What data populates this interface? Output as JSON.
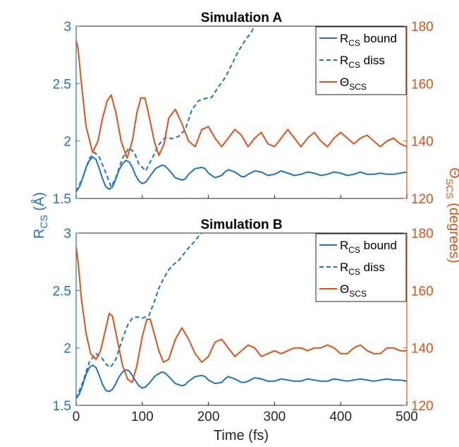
{
  "colors": {
    "blue": "#1f72bd",
    "orange": "#d95319",
    "axis": "#262626"
  },
  "figure": {
    "ylabel_left_main": "R",
    "ylabel_left_sub": "CS",
    "ylabel_left_tail": " (Å)",
    "ylabel_right_main": "Θ",
    "ylabel_right_sub": "SCS",
    "ylabel_right_tail": " (degrees)",
    "xlabel": "Time (fs)"
  },
  "chart_data": [
    {
      "type": "line",
      "title": "Simulation A",
      "xlim": [
        0,
        500
      ],
      "ylim_left": [
        1.5,
        3
      ],
      "ylim_right": [
        120,
        180
      ],
      "yticks_left": [
        "1.5",
        "2",
        "2.5",
        "3"
      ],
      "yticks_right": [
        "120",
        "140",
        "160",
        "180"
      ],
      "xticks": [
        "0",
        "100",
        "200",
        "300",
        "400",
        "500"
      ],
      "legend_position": "top-right",
      "series": [
        {
          "name": "R_CS bound",
          "legend_main": "R",
          "legend_sub": "CS",
          "legend_tail": " bound",
          "axis": "left",
          "style": "solid",
          "color": "blue",
          "x": [
            0,
            5,
            10,
            15,
            20,
            25,
            30,
            35,
            40,
            45,
            50,
            55,
            60,
            65,
            70,
            75,
            80,
            85,
            90,
            95,
            100,
            105,
            110,
            120,
            130,
            135,
            140,
            150,
            160,
            165,
            170,
            180,
            190,
            195,
            200,
            210,
            220,
            225,
            230,
            240,
            250,
            255,
            260,
            270,
            280,
            290,
            300,
            310,
            320,
            330,
            340,
            350,
            360,
            370,
            380,
            390,
            400,
            410,
            420,
            430,
            440,
            450,
            460,
            470,
            480,
            490,
            500
          ],
          "y": [
            1.56,
            1.6,
            1.68,
            1.77,
            1.83,
            1.86,
            1.84,
            1.76,
            1.67,
            1.6,
            1.58,
            1.6,
            1.67,
            1.75,
            1.8,
            1.83,
            1.82,
            1.77,
            1.7,
            1.65,
            1.63,
            1.64,
            1.68,
            1.76,
            1.79,
            1.78,
            1.75,
            1.68,
            1.66,
            1.67,
            1.71,
            1.76,
            1.77,
            1.76,
            1.72,
            1.68,
            1.7,
            1.73,
            1.75,
            1.73,
            1.69,
            1.69,
            1.71,
            1.74,
            1.73,
            1.7,
            1.71,
            1.74,
            1.72,
            1.7,
            1.71,
            1.73,
            1.72,
            1.7,
            1.71,
            1.73,
            1.72,
            1.7,
            1.71,
            1.73,
            1.71,
            1.71,
            1.72,
            1.71,
            1.71,
            1.72,
            1.73
          ]
        },
        {
          "name": "R_CS diss",
          "legend_main": "R",
          "legend_sub": "CS",
          "legend_tail": " diss",
          "axis": "left",
          "style": "dashed",
          "color": "blue",
          "x": [
            0,
            10,
            20,
            28,
            35,
            45,
            53,
            60,
            70,
            80,
            88,
            95,
            105,
            115,
            125,
            135,
            145,
            155,
            165,
            175,
            185,
            195,
            205,
            215,
            225,
            235,
            245,
            255,
            265,
            270
          ],
          "y": [
            1.56,
            1.68,
            1.85,
            1.9,
            1.86,
            1.72,
            1.6,
            1.68,
            1.85,
            1.94,
            1.9,
            1.8,
            1.74,
            1.85,
            1.97,
            2.03,
            2.02,
            2.04,
            2.1,
            2.27,
            2.35,
            2.37,
            2.38,
            2.47,
            2.55,
            2.66,
            2.78,
            2.87,
            2.95,
            3.0
          ]
        },
        {
          "name": "Θ_SCS",
          "legend_main": "Θ",
          "legend_sub": "SCS",
          "legend_tail": "",
          "axis": "right",
          "style": "solid",
          "color": "orange",
          "x": [
            0,
            3,
            8,
            15,
            25,
            33,
            40,
            47,
            53,
            60,
            68,
            77,
            85,
            92,
            98,
            104,
            110,
            118,
            125,
            133,
            140,
            150,
            160,
            170,
            180,
            190,
            200,
            210,
            220,
            230,
            240,
            250,
            260,
            270,
            280,
            290,
            300,
            310,
            320,
            330,
            340,
            350,
            360,
            370,
            380,
            390,
            400,
            410,
            420,
            430,
            440,
            450,
            460,
            470,
            480,
            490,
            500
          ],
          "y": [
            175,
            172,
            160,
            145,
            136,
            140,
            148,
            154,
            156,
            150,
            140,
            134,
            140,
            150,
            155,
            155,
            149,
            140,
            135,
            139,
            148,
            151,
            146,
            140,
            138,
            144,
            145,
            141,
            138,
            141,
            144,
            142,
            138,
            141,
            143,
            139,
            138,
            141,
            144,
            141,
            138,
            141,
            143,
            140,
            138,
            141,
            143,
            141,
            139,
            141,
            142,
            140,
            138,
            140,
            141,
            139,
            138
          ]
        }
      ]
    },
    {
      "type": "line",
      "title": "Simulation B",
      "xlim": [
        0,
        500
      ],
      "ylim_left": [
        1.5,
        3
      ],
      "ylim_right": [
        120,
        180
      ],
      "yticks_left": [
        "1.5",
        "2",
        "2.5",
        "3"
      ],
      "yticks_right": [
        "120",
        "140",
        "160",
        "180"
      ],
      "xticks": [
        "0",
        "100",
        "200",
        "300",
        "400",
        "500"
      ],
      "legend_position": "top-right",
      "series": [
        {
          "name": "R_CS bound",
          "legend_main": "R",
          "legend_sub": "CS",
          "legend_tail": " bound",
          "axis": "left",
          "style": "solid",
          "color": "blue",
          "x": [
            0,
            5,
            10,
            15,
            20,
            25,
            30,
            35,
            40,
            45,
            50,
            55,
            60,
            65,
            70,
            75,
            80,
            85,
            90,
            95,
            100,
            105,
            110,
            120,
            130,
            135,
            140,
            150,
            160,
            165,
            170,
            180,
            190,
            195,
            200,
            210,
            220,
            225,
            230,
            240,
            250,
            255,
            260,
            270,
            280,
            290,
            300,
            310,
            320,
            330,
            340,
            350,
            360,
            370,
            380,
            390,
            400,
            410,
            420,
            430,
            440,
            450,
            460,
            470,
            480,
            490,
            500
          ],
          "y": [
            1.56,
            1.6,
            1.68,
            1.77,
            1.83,
            1.85,
            1.83,
            1.76,
            1.68,
            1.63,
            1.62,
            1.64,
            1.69,
            1.75,
            1.79,
            1.81,
            1.8,
            1.76,
            1.71,
            1.67,
            1.65,
            1.66,
            1.69,
            1.76,
            1.79,
            1.78,
            1.75,
            1.69,
            1.67,
            1.68,
            1.71,
            1.75,
            1.76,
            1.75,
            1.72,
            1.69,
            1.7,
            1.73,
            1.75,
            1.73,
            1.7,
            1.7,
            1.71,
            1.74,
            1.73,
            1.71,
            1.71,
            1.73,
            1.72,
            1.71,
            1.71,
            1.73,
            1.72,
            1.71,
            1.71,
            1.73,
            1.72,
            1.71,
            1.72,
            1.73,
            1.72,
            1.71,
            1.72,
            1.73,
            1.72,
            1.72,
            1.71
          ]
        },
        {
          "name": "R_CS diss",
          "legend_main": "R",
          "legend_sub": "CS",
          "legend_tail": " diss",
          "axis": "left",
          "style": "dashed",
          "color": "blue",
          "x": [
            0,
            10,
            20,
            30,
            38,
            45,
            52,
            60,
            70,
            78,
            85,
            92,
            100,
            110,
            118,
            125,
            132,
            140,
            148,
            155,
            163,
            170,
            178,
            185,
            190
          ],
          "y": [
            1.56,
            1.7,
            1.88,
            1.95,
            1.92,
            1.86,
            1.83,
            1.9,
            2.08,
            2.2,
            2.26,
            2.27,
            2.26,
            2.28,
            2.4,
            2.52,
            2.6,
            2.68,
            2.73,
            2.76,
            2.82,
            2.87,
            2.92,
            2.97,
            3.0
          ]
        },
        {
          "name": "Θ_SCS",
          "legend_main": "Θ",
          "legend_sub": "SCS",
          "legend_tail": "",
          "axis": "right",
          "style": "solid",
          "color": "orange",
          "x": [
            0,
            3,
            8,
            15,
            22,
            30,
            37,
            44,
            50,
            55,
            62,
            70,
            78,
            85,
            92,
            100,
            107,
            112,
            118,
            125,
            132,
            140,
            150,
            160,
            170,
            180,
            190,
            200,
            210,
            220,
            230,
            240,
            250,
            260,
            270,
            280,
            290,
            300,
            310,
            320,
            330,
            340,
            350,
            360,
            370,
            380,
            390,
            400,
            410,
            420,
            430,
            440,
            450,
            460,
            470,
            480,
            490,
            500
          ],
          "y": [
            175,
            170,
            157,
            145,
            138,
            136,
            139,
            146,
            152,
            151,
            143,
            134,
            129,
            128,
            134,
            144,
            150,
            150,
            145,
            139,
            135,
            136,
            143,
            147,
            143,
            138,
            135,
            137,
            142,
            143,
            140,
            137,
            139,
            141,
            140,
            137,
            138,
            139,
            138,
            139,
            140,
            140,
            139,
            140,
            140,
            141,
            140,
            138,
            138,
            140,
            141,
            139,
            138,
            138,
            140,
            140,
            139,
            139
          ]
        }
      ]
    }
  ]
}
